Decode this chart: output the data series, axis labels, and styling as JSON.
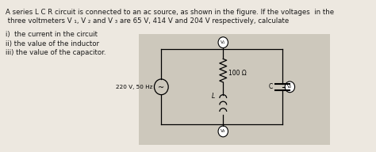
{
  "question_lines": [
    "A series L C R circuit is connected to an ac source, as shown in the figure. If the voltages  in the",
    " three voltmeters V ₁, V ₂ and V ₃ are 65 V, 414 V and 204 V respectively, calculate"
  ],
  "items": [
    "i)  the current in the circuit",
    "ii) the value of the inductor",
    "iii) the value of the capacitor."
  ],
  "source_label": "220 V, 50 Hz",
  "resistor_label": "100 Ω",
  "inductor_label": "L",
  "capacitor_label": "C",
  "v1_label": "V₁",
  "v2_label": "V₂",
  "v3_label": "V₃",
  "bg_color": "#ede8e0",
  "circuit_bg": "#cdc8bc",
  "text_color": "#1a1a1a",
  "fig_w": 4.74,
  "fig_h": 1.92,
  "dpi": 100
}
